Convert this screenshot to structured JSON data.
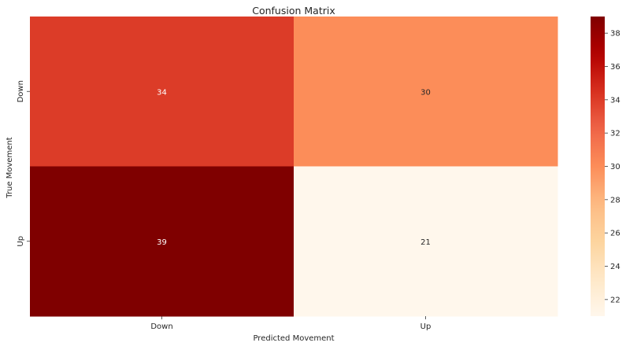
{
  "chart_data": {
    "type": "heatmap",
    "title": "Confusion Matrix",
    "xlabel": "Predicted Movement",
    "ylabel": "True Movement",
    "x_categories": [
      "Down",
      "Up"
    ],
    "y_categories": [
      "Down",
      "Up"
    ],
    "values": [
      [
        34,
        30
      ],
      [
        39,
        21
      ]
    ],
    "colormap": "OrRd",
    "value_range": [
      21,
      39
    ],
    "colorbar": {
      "ticks": [
        22,
        24,
        26,
        28,
        30,
        32,
        34,
        36,
        38
      ],
      "range": [
        21,
        39
      ]
    },
    "annotations": true,
    "grid": false
  }
}
